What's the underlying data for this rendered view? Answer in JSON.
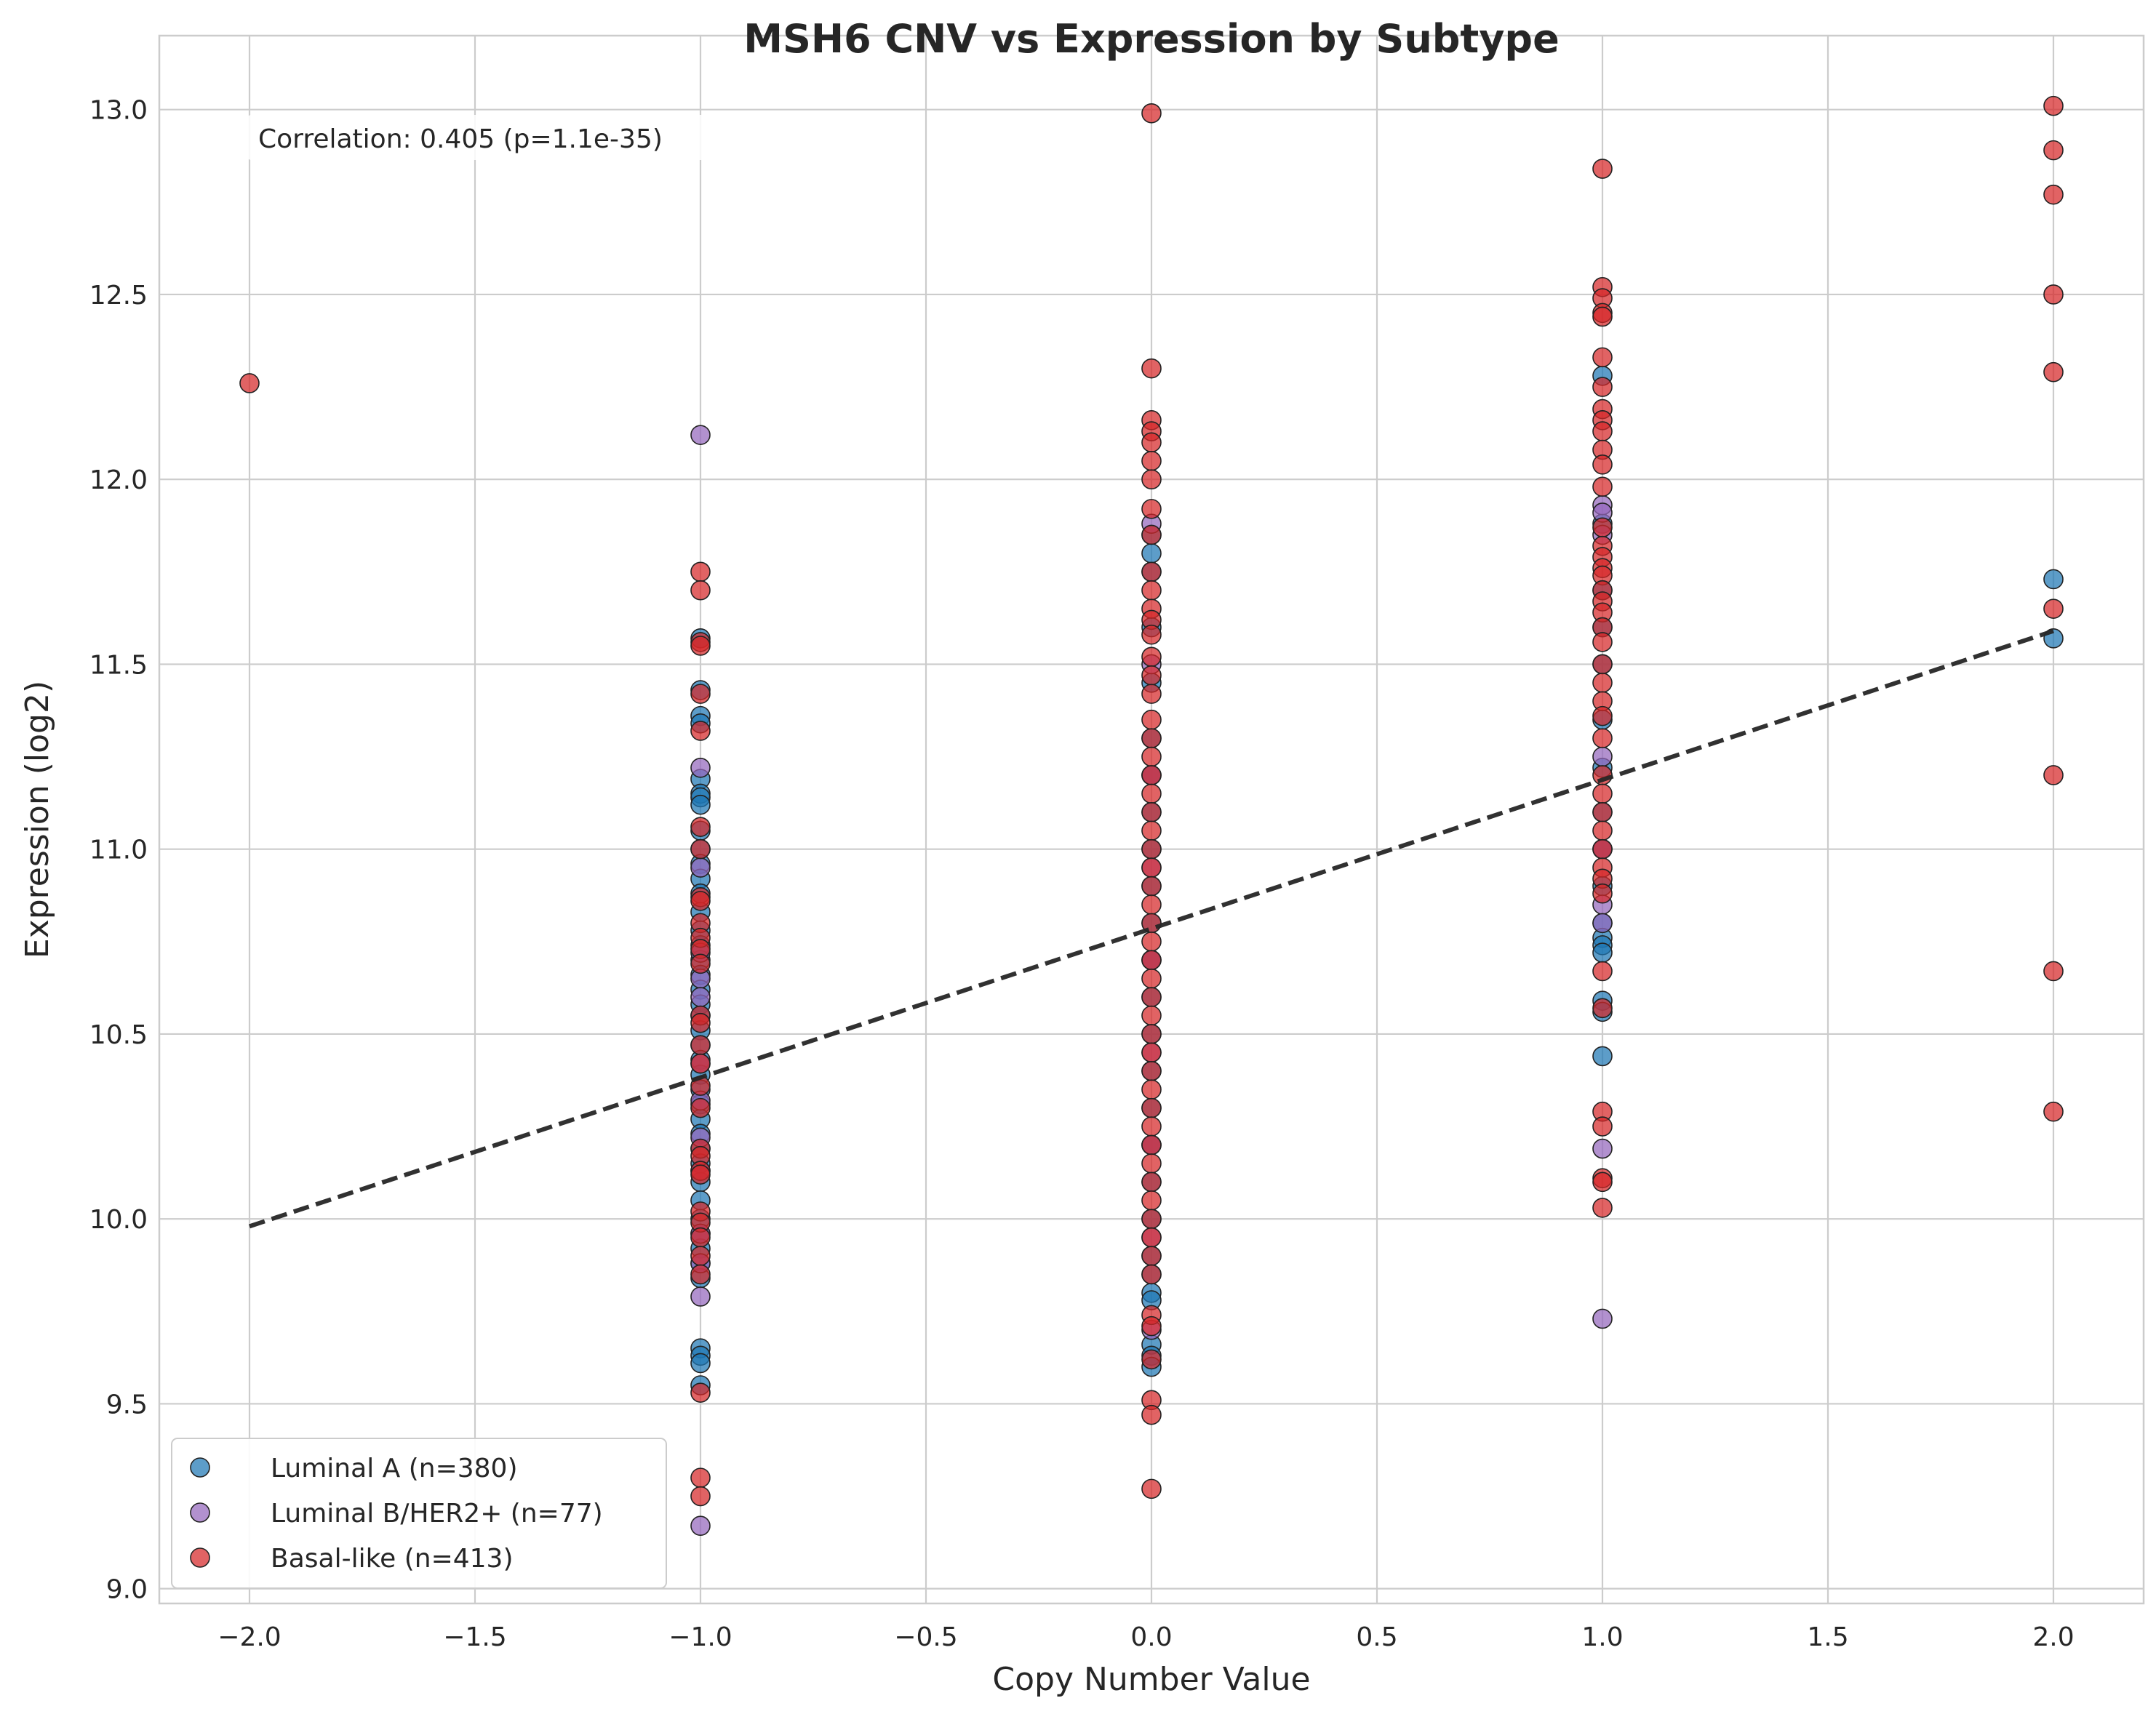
{
  "chart_data": {
    "type": "scatter",
    "title": "MSH6 CNV vs Expression by Subtype",
    "xlabel": "Copy Number Value",
    "ylabel": "Expression (log2)",
    "xlim": [
      -2.2,
      2.2
    ],
    "ylim": [
      8.96,
      13.2
    ],
    "xticks": [
      -2.0,
      -1.5,
      -1.0,
      -0.5,
      0.0,
      0.5,
      1.0,
      1.5,
      2.0
    ],
    "xtick_labels": [
      "−2.0",
      "−1.5",
      "−1.0",
      "−0.5",
      "0.0",
      "0.5",
      "1.0",
      "1.5",
      "2.0"
    ],
    "yticks": [
      9.0,
      9.5,
      10.0,
      10.5,
      11.0,
      11.5,
      12.0,
      12.5,
      13.0
    ],
    "ytick_labels": [
      "9.0",
      "9.5",
      "10.0",
      "10.5",
      "11.0",
      "11.5",
      "12.0",
      "12.5",
      "13.0"
    ],
    "grid": true,
    "legend_position": "lower-left",
    "annotation": "Correlation: 0.405 (p=1.1e-35)",
    "trendline": {
      "style": "dashed",
      "color": "#262626",
      "x": [
        -2.0,
        2.0
      ],
      "y": [
        9.98,
        11.59
      ]
    },
    "series": [
      {
        "name": "Luminal A (n=380)",
        "color": "#1f77b4",
        "points": [
          [
            -1,
            11.57
          ],
          [
            -1,
            11.43
          ],
          [
            -1,
            11.36
          ],
          [
            -1,
            11.34
          ],
          [
            -1,
            11.19
          ],
          [
            -1,
            11.15
          ],
          [
            -1,
            11.14
          ],
          [
            -1,
            11.12
          ],
          [
            -1,
            11.05
          ],
          [
            -1,
            11.0
          ],
          [
            -1,
            10.96
          ],
          [
            -1,
            10.92
          ],
          [
            -1,
            10.88
          ],
          [
            -1,
            10.83
          ],
          [
            -1,
            10.78
          ],
          [
            -1,
            10.74
          ],
          [
            -1,
            10.7
          ],
          [
            -1,
            10.66
          ],
          [
            -1,
            10.62
          ],
          [
            -1,
            10.58
          ],
          [
            -1,
            10.55
          ],
          [
            -1,
            10.51
          ],
          [
            -1,
            10.47
          ],
          [
            -1,
            10.43
          ],
          [
            -1,
            10.39
          ],
          [
            -1,
            10.35
          ],
          [
            -1,
            10.31
          ],
          [
            -1,
            10.27
          ],
          [
            -1,
            10.23
          ],
          [
            -1,
            10.19
          ],
          [
            -1,
            10.15
          ],
          [
            -1,
            10.1
          ],
          [
            -1,
            10.05
          ],
          [
            -1,
            10.0
          ],
          [
            -1,
            9.96
          ],
          [
            -1,
            9.92
          ],
          [
            -1,
            9.88
          ],
          [
            -1,
            9.84
          ],
          [
            -1,
            9.65
          ],
          [
            -1,
            9.63
          ],
          [
            -1,
            9.61
          ],
          [
            -1,
            9.55
          ],
          [
            0,
            11.85
          ],
          [
            0,
            11.8
          ],
          [
            0,
            11.75
          ],
          [
            0,
            11.6
          ],
          [
            0,
            11.45
          ],
          [
            0,
            11.3
          ],
          [
            0,
            11.2
          ],
          [
            0,
            11.1
          ],
          [
            0,
            11.0
          ],
          [
            0,
            10.9
          ],
          [
            0,
            10.8
          ],
          [
            0,
            10.7
          ],
          [
            0,
            10.6
          ],
          [
            0,
            10.5
          ],
          [
            0,
            10.4
          ],
          [
            0,
            10.3
          ],
          [
            0,
            10.2
          ],
          [
            0,
            10.1
          ],
          [
            0,
            10.0
          ],
          [
            0,
            9.9
          ],
          [
            0,
            9.85
          ],
          [
            0,
            9.8
          ],
          [
            0,
            9.78
          ],
          [
            0,
            9.66
          ],
          [
            0,
            9.63
          ],
          [
            0,
            9.6
          ],
          [
            1,
            12.28
          ],
          [
            1,
            11.88
          ],
          [
            1,
            11.7
          ],
          [
            1,
            11.6
          ],
          [
            1,
            11.5
          ],
          [
            1,
            11.35
          ],
          [
            1,
            11.22
          ],
          [
            1,
            11.1
          ],
          [
            1,
            11.0
          ],
          [
            1,
            10.9
          ],
          [
            1,
            10.8
          ],
          [
            1,
            10.76
          ],
          [
            1,
            10.74
          ],
          [
            1,
            10.72
          ],
          [
            1,
            10.59
          ],
          [
            1,
            10.56
          ],
          [
            1,
            10.44
          ],
          [
            2,
            11.73
          ],
          [
            2,
            11.57
          ]
        ]
      },
      {
        "name": "Luminal B/HER2+ (n=77)",
        "color": "#9467bd",
        "points": [
          [
            -1,
            12.12
          ],
          [
            -1,
            11.22
          ],
          [
            -1,
            10.95
          ],
          [
            -1,
            10.72
          ],
          [
            -1,
            10.65
          ],
          [
            -1,
            10.6
          ],
          [
            -1,
            10.42
          ],
          [
            -1,
            10.32
          ],
          [
            -1,
            10.22
          ],
          [
            -1,
            10.13
          ],
          [
            -1,
            9.96
          ],
          [
            -1,
            9.88
          ],
          [
            -1,
            9.79
          ],
          [
            -1,
            9.17
          ],
          [
            0,
            11.88
          ],
          [
            0,
            11.5
          ],
          [
            0,
            11.2
          ],
          [
            0,
            10.95
          ],
          [
            0,
            10.7
          ],
          [
            0,
            10.45
          ],
          [
            0,
            10.2
          ],
          [
            0,
            9.95
          ],
          [
            0,
            9.7
          ],
          [
            1,
            11.93
          ],
          [
            1,
            11.91
          ],
          [
            1,
            11.85
          ],
          [
            1,
            11.25
          ],
          [
            1,
            11.0
          ],
          [
            1,
            10.85
          ],
          [
            1,
            10.8
          ],
          [
            1,
            10.19
          ],
          [
            1,
            9.73
          ]
        ]
      },
      {
        "name": "Basal-like (n=413)",
        "color": "#d62728",
        "points": [
          [
            -2,
            12.26
          ],
          [
            -1,
            11.75
          ],
          [
            -1,
            11.7
          ],
          [
            -1,
            11.56
          ],
          [
            -1,
            11.55
          ],
          [
            -1,
            11.42
          ],
          [
            -1,
            11.32
          ],
          [
            -1,
            11.06
          ],
          [
            -1,
            11.0
          ],
          [
            -1,
            10.87
          ],
          [
            -1,
            10.86
          ],
          [
            -1,
            10.8
          ],
          [
            -1,
            10.76
          ],
          [
            -1,
            10.73
          ],
          [
            -1,
            10.69
          ],
          [
            -1,
            10.55
          ],
          [
            -1,
            10.53
          ],
          [
            -1,
            10.47
          ],
          [
            -1,
            10.42
          ],
          [
            -1,
            10.36
          ],
          [
            -1,
            10.3
          ],
          [
            -1,
            10.19
          ],
          [
            -1,
            10.17
          ],
          [
            -1,
            10.13
          ],
          [
            -1,
            10.12
          ],
          [
            -1,
            10.02
          ],
          [
            -1,
            9.99
          ],
          [
            -1,
            9.95
          ],
          [
            -1,
            9.9
          ],
          [
            -1,
            9.85
          ],
          [
            -1,
            9.53
          ],
          [
            -1,
            9.3
          ],
          [
            -1,
            9.25
          ],
          [
            0,
            12.99
          ],
          [
            0,
            12.3
          ],
          [
            0,
            12.16
          ],
          [
            0,
            12.13
          ],
          [
            0,
            12.1
          ],
          [
            0,
            12.05
          ],
          [
            0,
            12.0
          ],
          [
            0,
            11.92
          ],
          [
            0,
            11.85
          ],
          [
            0,
            11.75
          ],
          [
            0,
            11.7
          ],
          [
            0,
            11.65
          ],
          [
            0,
            11.62
          ],
          [
            0,
            11.58
          ],
          [
            0,
            11.52
          ],
          [
            0,
            11.47
          ],
          [
            0,
            11.42
          ],
          [
            0,
            11.35
          ],
          [
            0,
            11.3
          ],
          [
            0,
            11.25
          ],
          [
            0,
            11.2
          ],
          [
            0,
            11.15
          ],
          [
            0,
            11.1
          ],
          [
            0,
            11.05
          ],
          [
            0,
            11.0
          ],
          [
            0,
            10.95
          ],
          [
            0,
            10.9
          ],
          [
            0,
            10.85
          ],
          [
            0,
            10.8
          ],
          [
            0,
            10.75
          ],
          [
            0,
            10.7
          ],
          [
            0,
            10.65
          ],
          [
            0,
            10.6
          ],
          [
            0,
            10.55
          ],
          [
            0,
            10.5
          ],
          [
            0,
            10.45
          ],
          [
            0,
            10.4
          ],
          [
            0,
            10.35
          ],
          [
            0,
            10.3
          ],
          [
            0,
            10.25
          ],
          [
            0,
            10.2
          ],
          [
            0,
            10.15
          ],
          [
            0,
            10.1
          ],
          [
            0,
            10.05
          ],
          [
            0,
            10.0
          ],
          [
            0,
            9.95
          ],
          [
            0,
            9.9
          ],
          [
            0,
            9.85
          ],
          [
            0,
            9.74
          ],
          [
            0,
            9.71
          ],
          [
            0,
            9.62
          ],
          [
            0,
            9.51
          ],
          [
            0,
            9.47
          ],
          [
            0,
            9.27
          ],
          [
            1,
            12.84
          ],
          [
            1,
            12.52
          ],
          [
            1,
            12.49
          ],
          [
            1,
            12.45
          ],
          [
            1,
            12.44
          ],
          [
            1,
            12.33
          ],
          [
            1,
            12.25
          ],
          [
            1,
            12.19
          ],
          [
            1,
            12.16
          ],
          [
            1,
            12.13
          ],
          [
            1,
            12.08
          ],
          [
            1,
            12.04
          ],
          [
            1,
            11.98
          ],
          [
            1,
            11.87
          ],
          [
            1,
            11.82
          ],
          [
            1,
            11.79
          ],
          [
            1,
            11.76
          ],
          [
            1,
            11.74
          ],
          [
            1,
            11.7
          ],
          [
            1,
            11.67
          ],
          [
            1,
            11.64
          ],
          [
            1,
            11.6
          ],
          [
            1,
            11.56
          ],
          [
            1,
            11.5
          ],
          [
            1,
            11.45
          ],
          [
            1,
            11.4
          ],
          [
            1,
            11.36
          ],
          [
            1,
            11.3
          ],
          [
            1,
            11.2
          ],
          [
            1,
            11.15
          ],
          [
            1,
            11.1
          ],
          [
            1,
            11.05
          ],
          [
            1,
            11.0
          ],
          [
            1,
            10.95
          ],
          [
            1,
            10.92
          ],
          [
            1,
            10.88
          ],
          [
            1,
            10.67
          ],
          [
            1,
            10.57
          ],
          [
            1,
            10.29
          ],
          [
            1,
            10.25
          ],
          [
            1,
            10.11
          ],
          [
            1,
            10.1
          ],
          [
            1,
            10.03
          ],
          [
            2,
            13.01
          ],
          [
            2,
            12.89
          ],
          [
            2,
            12.77
          ],
          [
            2,
            12.5
          ],
          [
            2,
            12.29
          ],
          [
            2,
            11.65
          ],
          [
            2,
            11.2
          ],
          [
            2,
            10.67
          ],
          [
            2,
            10.29
          ]
        ]
      }
    ]
  }
}
